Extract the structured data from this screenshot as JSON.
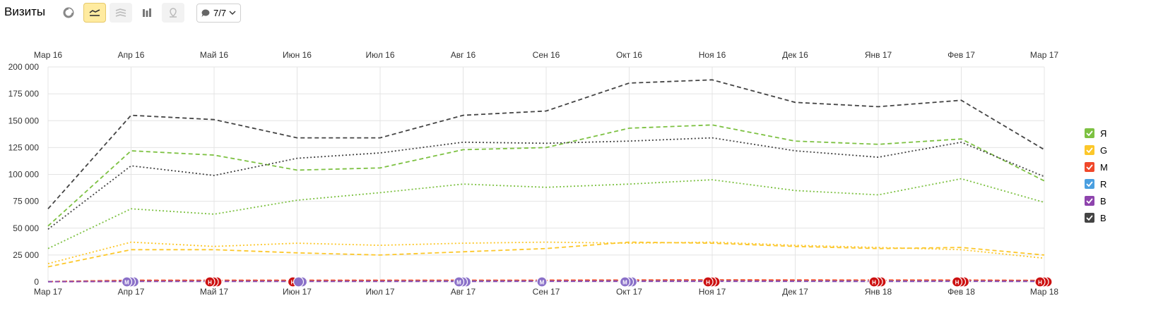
{
  "header": {
    "title": "Визиты",
    "comments_count": "7/7",
    "tools": [
      {
        "name": "pie-chart-icon",
        "state": "normal"
      },
      {
        "name": "line-chart-icon",
        "state": "active"
      },
      {
        "name": "area-chart-icon",
        "state": "disabled"
      },
      {
        "name": "bar-chart-icon",
        "state": "normal"
      },
      {
        "name": "map-icon",
        "state": "disabled"
      }
    ]
  },
  "colors": {
    "green": "#7dc142",
    "yellow": "#fcc72a",
    "red": "#f0482b",
    "blue": "#4a9fe0",
    "purple": "#8e44ad",
    "dark": "#444444",
    "grid": "#e4e4e4",
    "active_tool_bg": "#ffeba0",
    "marker_m": "#8a70c8",
    "marker_n": "#cc1111"
  },
  "chart_data": {
    "type": "line",
    "top_axis_labels": [
      "Мар 16",
      "Апр 16",
      "Май 16",
      "Июн 16",
      "Июл 16",
      "Авг 16",
      "Сен 16",
      "Окт 16",
      "Ноя 16",
      "Дек 16",
      "Янв 17",
      "Фев 17",
      "Мар 17"
    ],
    "categories": [
      "Мар 17",
      "Апр 17",
      "Май 17",
      "Июн 17",
      "Июл 17",
      "Авг 17",
      "Сен 17",
      "Окт 17",
      "Ноя 17",
      "Дек 17",
      "Янв 18",
      "Фев 18",
      "Мар 18"
    ],
    "y_ticks": [
      "0",
      "25 000",
      "50 000",
      "75 000",
      "100 000",
      "125 000",
      "150 000",
      "175 000",
      "200 000"
    ],
    "ylim": [
      0,
      200000
    ],
    "grid": true,
    "legend_position": "right",
    "series": [
      {
        "name": "Я",
        "color_key": "green",
        "style": "dashed",
        "values": [
          52000,
          122000,
          118000,
          104000,
          106000,
          123000,
          125000,
          143000,
          146000,
          131000,
          128000,
          133000,
          94000
        ]
      },
      {
        "color_key": "green",
        "style": "dotted",
        "values": [
          31000,
          68000,
          63000,
          76000,
          83000,
          91000,
          88000,
          91000,
          95000,
          85000,
          81000,
          96000,
          74000
        ]
      },
      {
        "name": "G",
        "color_key": "yellow",
        "style": "dashed",
        "values": [
          14000,
          30000,
          30000,
          27000,
          25000,
          28000,
          31000,
          37000,
          36000,
          33000,
          31000,
          32000,
          25000
        ]
      },
      {
        "color_key": "yellow",
        "style": "dotted",
        "values": [
          17000,
          37000,
          33000,
          36000,
          34000,
          36000,
          37000,
          36000,
          37000,
          34000,
          32000,
          30000,
          22000
        ]
      },
      {
        "name": "M",
        "color_key": "red",
        "style": "dashed",
        "values": [
          300,
          1500,
          1600,
          1500,
          1500,
          1600,
          1600,
          1800,
          1900,
          1800,
          1700,
          1700,
          1400
        ]
      },
      {
        "color_key": "red",
        "style": "dotted",
        "values": [
          300,
          1200,
          1300,
          1200,
          1300,
          1300,
          1400,
          1500,
          1600,
          1500,
          1400,
          1500,
          1200
        ]
      },
      {
        "name": "R",
        "color_key": "blue",
        "style": "dashed",
        "values": [
          200,
          600,
          600,
          600,
          600,
          700,
          700,
          800,
          800,
          700,
          700,
          700,
          600
        ]
      },
      {
        "name": "B",
        "color_key": "purple",
        "style": "dashed",
        "values": [
          100,
          400,
          400,
          400,
          400,
          400,
          500,
          500,
          500,
          500,
          400,
          500,
          400
        ]
      },
      {
        "name": "В",
        "color_key": "dark",
        "style": "dashed",
        "values": [
          68000,
          155000,
          151000,
          134000,
          134000,
          155000,
          159000,
          185000,
          188000,
          167000,
          163000,
          169000,
          123000
        ]
      },
      {
        "color_key": "dark",
        "style": "dotted",
        "values": [
          49000,
          108000,
          99000,
          115000,
          120000,
          130000,
          129000,
          131000,
          134000,
          122000,
          116000,
          130000,
          98000
        ]
      }
    ],
    "markers": [
      {
        "category_index": 1,
        "letter": "М",
        "count": 3,
        "color_key": "marker_m"
      },
      {
        "category_index": 2,
        "letter": "Н",
        "count": 3,
        "color_key": "marker_n"
      },
      {
        "category_index": 3,
        "letter": "Н",
        "count": 3,
        "color_key": "marker_n"
      },
      {
        "category_index": 3,
        "letter": "",
        "count": 2,
        "color_key": "marker_m",
        "offset": 1
      },
      {
        "category_index": 5,
        "letter": "М",
        "count": 3,
        "color_key": "marker_m"
      },
      {
        "category_index": 6,
        "letter": "М",
        "count": 1,
        "color_key": "marker_m"
      },
      {
        "category_index": 7,
        "letter": "М",
        "count": 3,
        "color_key": "marker_m"
      },
      {
        "category_index": 8,
        "letter": "Н",
        "count": 3,
        "color_key": "marker_n"
      },
      {
        "category_index": 10,
        "letter": "Н",
        "count": 3,
        "color_key": "marker_n"
      },
      {
        "category_index": 11,
        "letter": "Н",
        "count": 3,
        "color_key": "marker_n"
      },
      {
        "category_index": 12,
        "letter": "Н",
        "count": 3,
        "color_key": "marker_n"
      }
    ]
  },
  "legend": {
    "items": [
      {
        "label": "Я",
        "color_key": "green"
      },
      {
        "label": "G",
        "color_key": "yellow"
      },
      {
        "label": "M",
        "color_key": "red"
      },
      {
        "label": "R",
        "color_key": "blue"
      },
      {
        "label": "B",
        "color_key": "purple"
      },
      {
        "label": "В",
        "color_key": "dark"
      }
    ]
  }
}
